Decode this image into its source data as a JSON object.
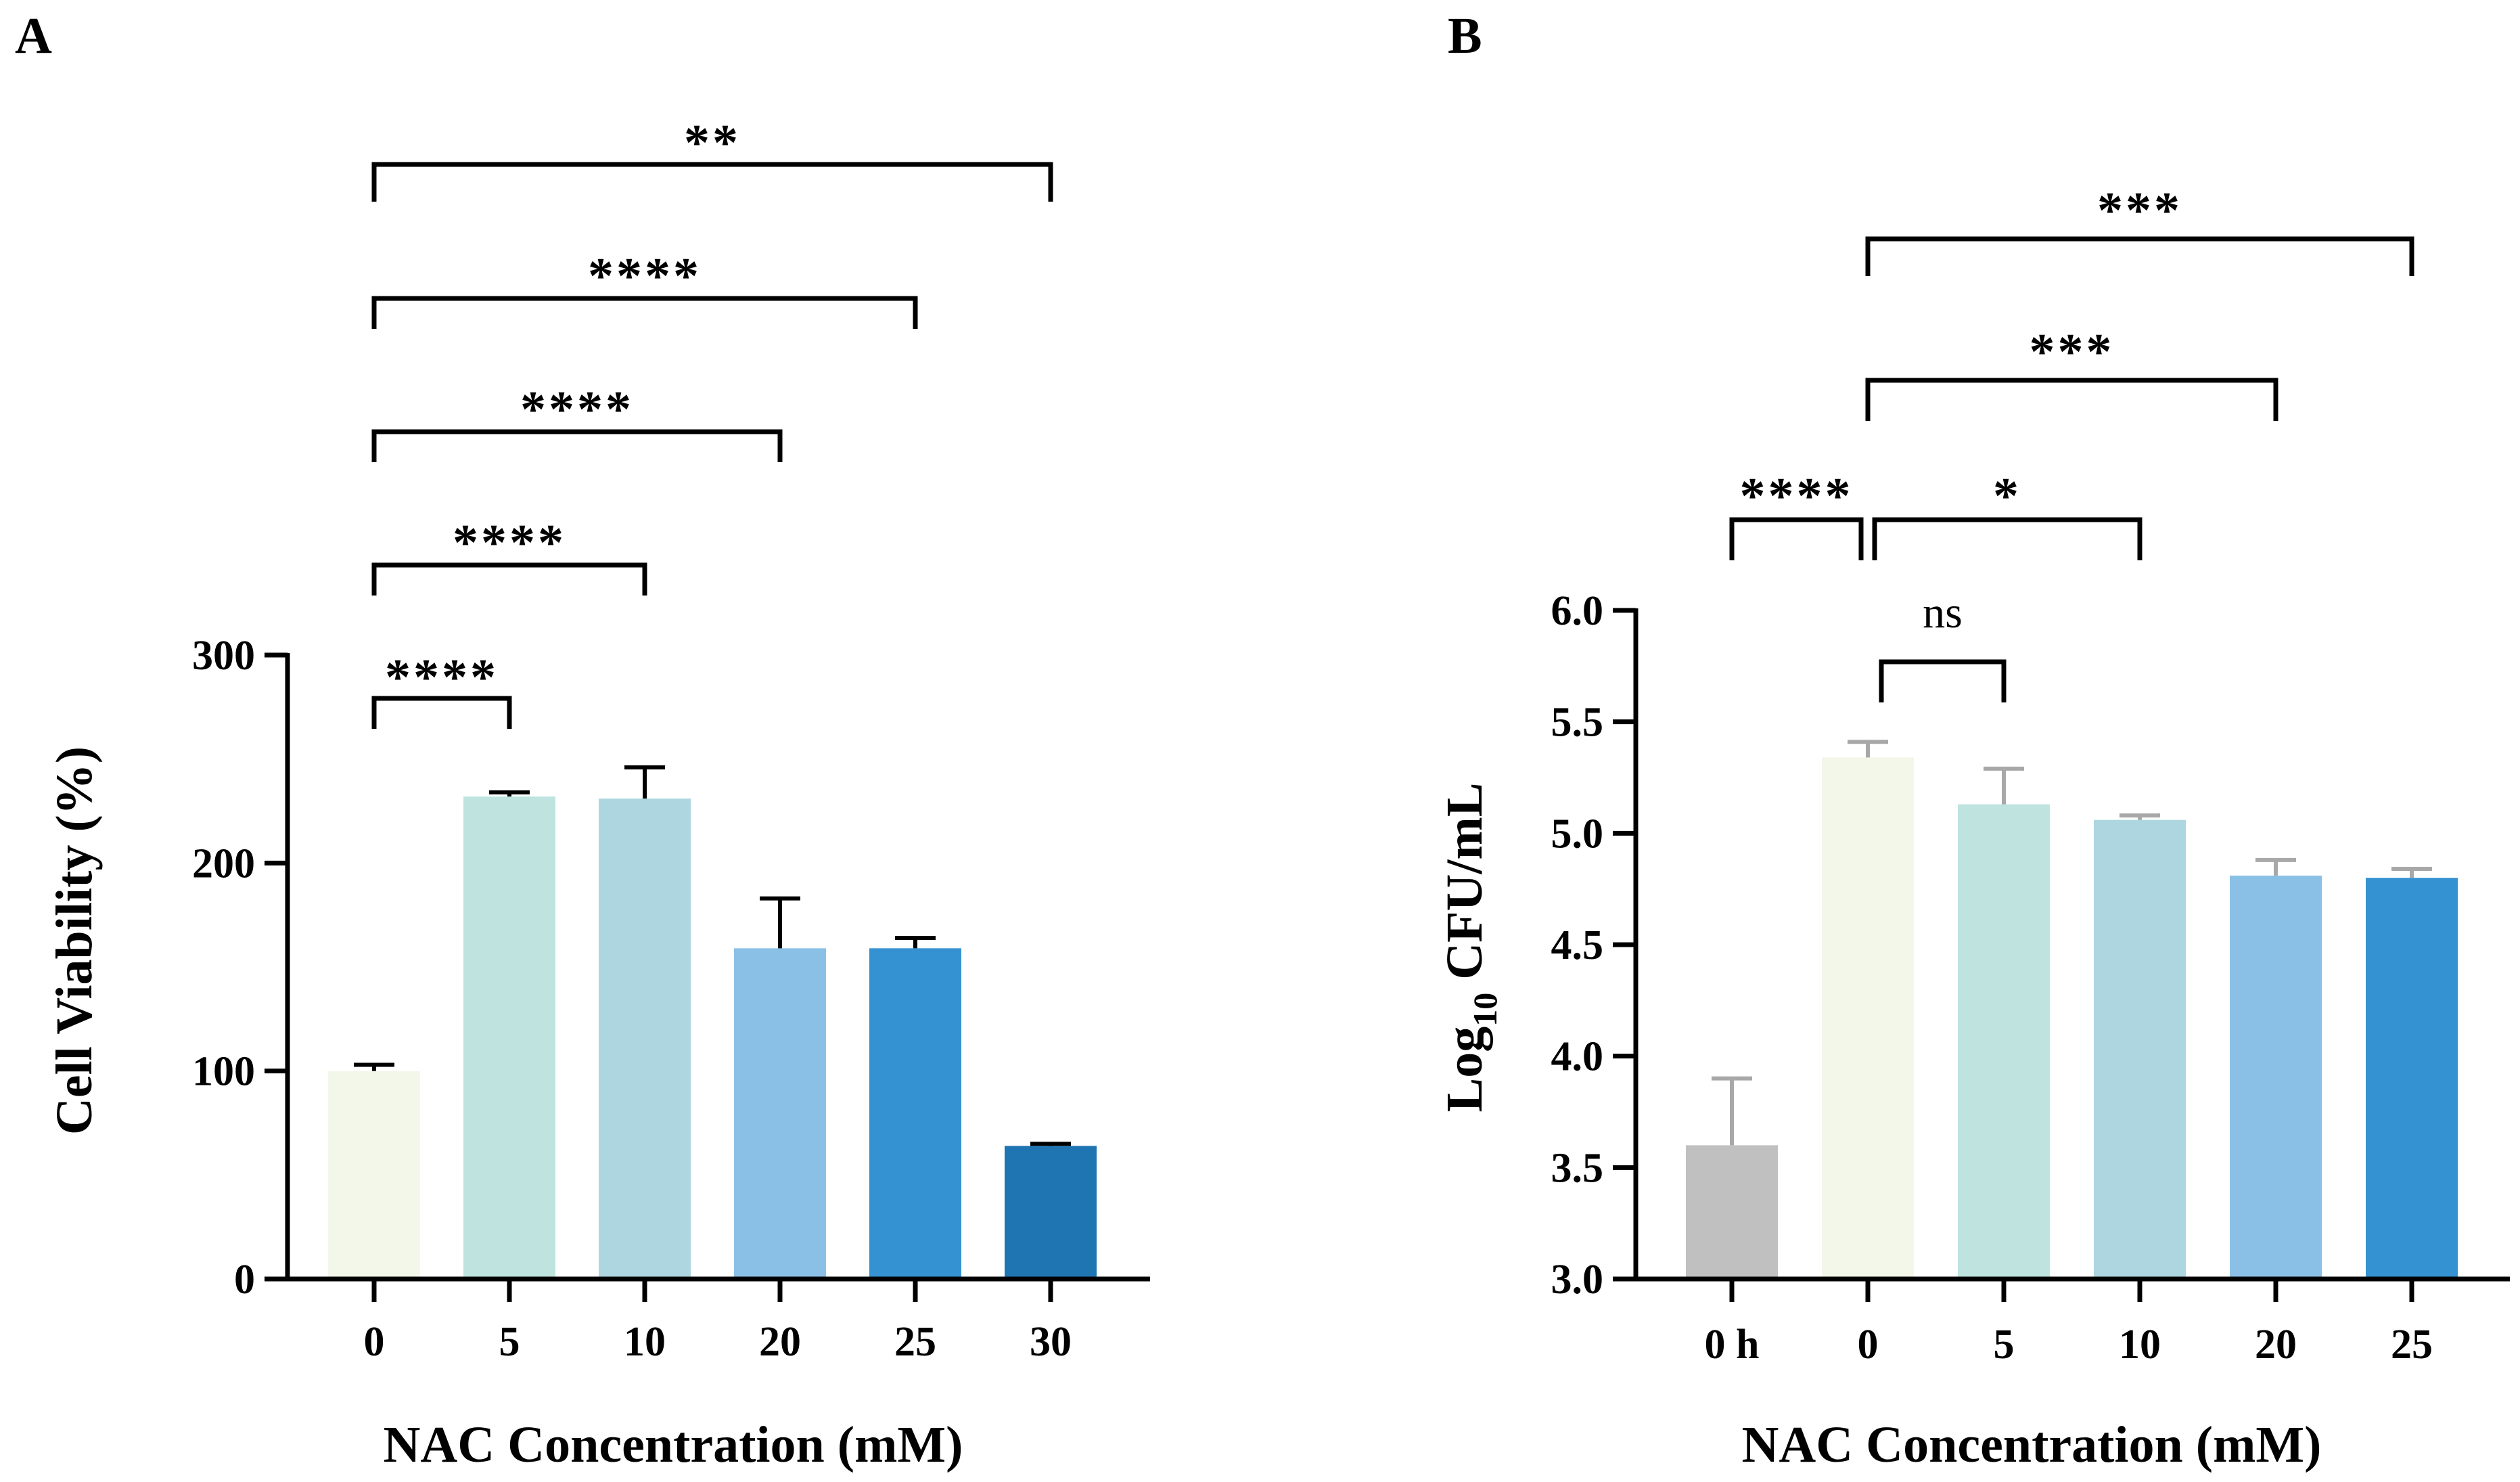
{
  "chart_data": [
    {
      "panel": "A",
      "type": "bar",
      "xlabel": "NAC Concentration (mM)",
      "ylabel": "Cell Viability (%)",
      "ylim": [
        0,
        300
      ],
      "yticks": [
        "0",
        "100",
        "200",
        "300"
      ],
      "categories": [
        "0",
        "5",
        "10",
        "20",
        "25",
        "30"
      ],
      "values": [
        100,
        232,
        231,
        159,
        159,
        64
      ],
      "errors": [
        3,
        2,
        15,
        24,
        5,
        1
      ],
      "colors": [
        "#f3f7ea",
        "#bfe4e0",
        "#aed6e1",
        "#8bc0e6",
        "#3592d2",
        "#1f74b2"
      ],
      "error_color": "#000000",
      "significance": [
        {
          "from": 0,
          "to": 1,
          "label": "****"
        },
        {
          "from": 0,
          "to": 2,
          "label": "****"
        },
        {
          "from": 0,
          "to": 3,
          "label": "****"
        },
        {
          "from": 0,
          "to": 4,
          "label": "****"
        },
        {
          "from": 0,
          "to": 5,
          "label": "**"
        }
      ]
    },
    {
      "panel": "B",
      "type": "bar",
      "xlabel": "NAC Concentration (mM)",
      "ylabel_main": "Log",
      "ylabel_sub": "10",
      "ylabel_rest": " CFU/mL",
      "ylim": [
        3.0,
        6.0
      ],
      "yticks": [
        "3.0",
        "3.5",
        "4.0",
        "4.5",
        "5.0",
        "5.5",
        "6.0"
      ],
      "categories": [
        "0 h",
        "0",
        "5",
        "10",
        "20",
        "25"
      ],
      "values": [
        3.6,
        5.34,
        5.13,
        5.06,
        4.81,
        4.8
      ],
      "errors": [
        0.3,
        0.07,
        0.16,
        0.02,
        0.07,
        0.04
      ],
      "colors": [
        "#c0c0c0",
        "#f3f7ea",
        "#bfe4e0",
        "#aed6e1",
        "#8bc0e6",
        "#3592d2"
      ],
      "error_color": "#a8a8a8",
      "significance": [
        {
          "from": 1,
          "to": 2,
          "label": "ns"
        },
        {
          "from": 0,
          "to": 1,
          "label": "****"
        },
        {
          "from": 1,
          "to": 3,
          "label": "*"
        },
        {
          "from": 1,
          "to": 4,
          "label": "***"
        },
        {
          "from": 1,
          "to": 5,
          "label": "***"
        }
      ]
    }
  ]
}
